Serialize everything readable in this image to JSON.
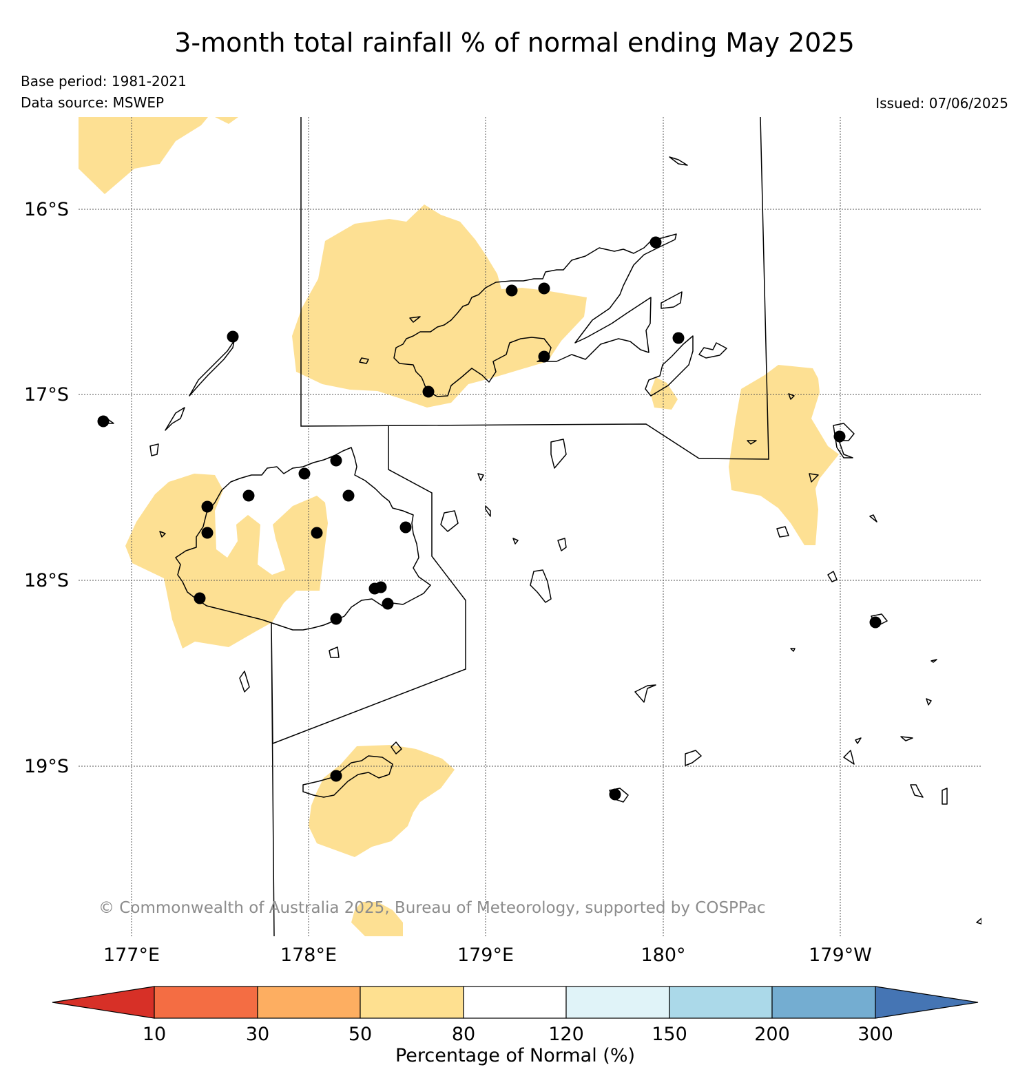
{
  "header": {
    "title": "3-month total rainfall % of normal ending May 2025",
    "base_period": "Base period: 1981-2021",
    "data_source": "Data source: MSWEP",
    "issued": "Issued: 07/06/2025"
  },
  "map": {
    "lat_labels": [
      "16°S",
      "17°S",
      "18°S",
      "19°S"
    ],
    "lon_labels": [
      "177°E",
      "178°E",
      "179°E",
      "180°",
      "179°W"
    ],
    "copyright": "© Commonwealth of Australia 2025, Bureau of Meteorology, supported by COSPPac",
    "gridlines": true,
    "station_marker_color": "#000000",
    "shaded_category": "50–80 % of normal",
    "shade_color": "#fde093"
  },
  "colorbar": {
    "label": "Percentage of Normal (%)",
    "ticks": [
      "10",
      "30",
      "50",
      "80",
      "120",
      "150",
      "200",
      "300"
    ],
    "colors": [
      "#d73027",
      "#f46d43",
      "#fdae61",
      "#fee090",
      "#ffffff",
      "#e0f3f8",
      "#abd9e9",
      "#74add1",
      "#4575b4"
    ]
  }
}
